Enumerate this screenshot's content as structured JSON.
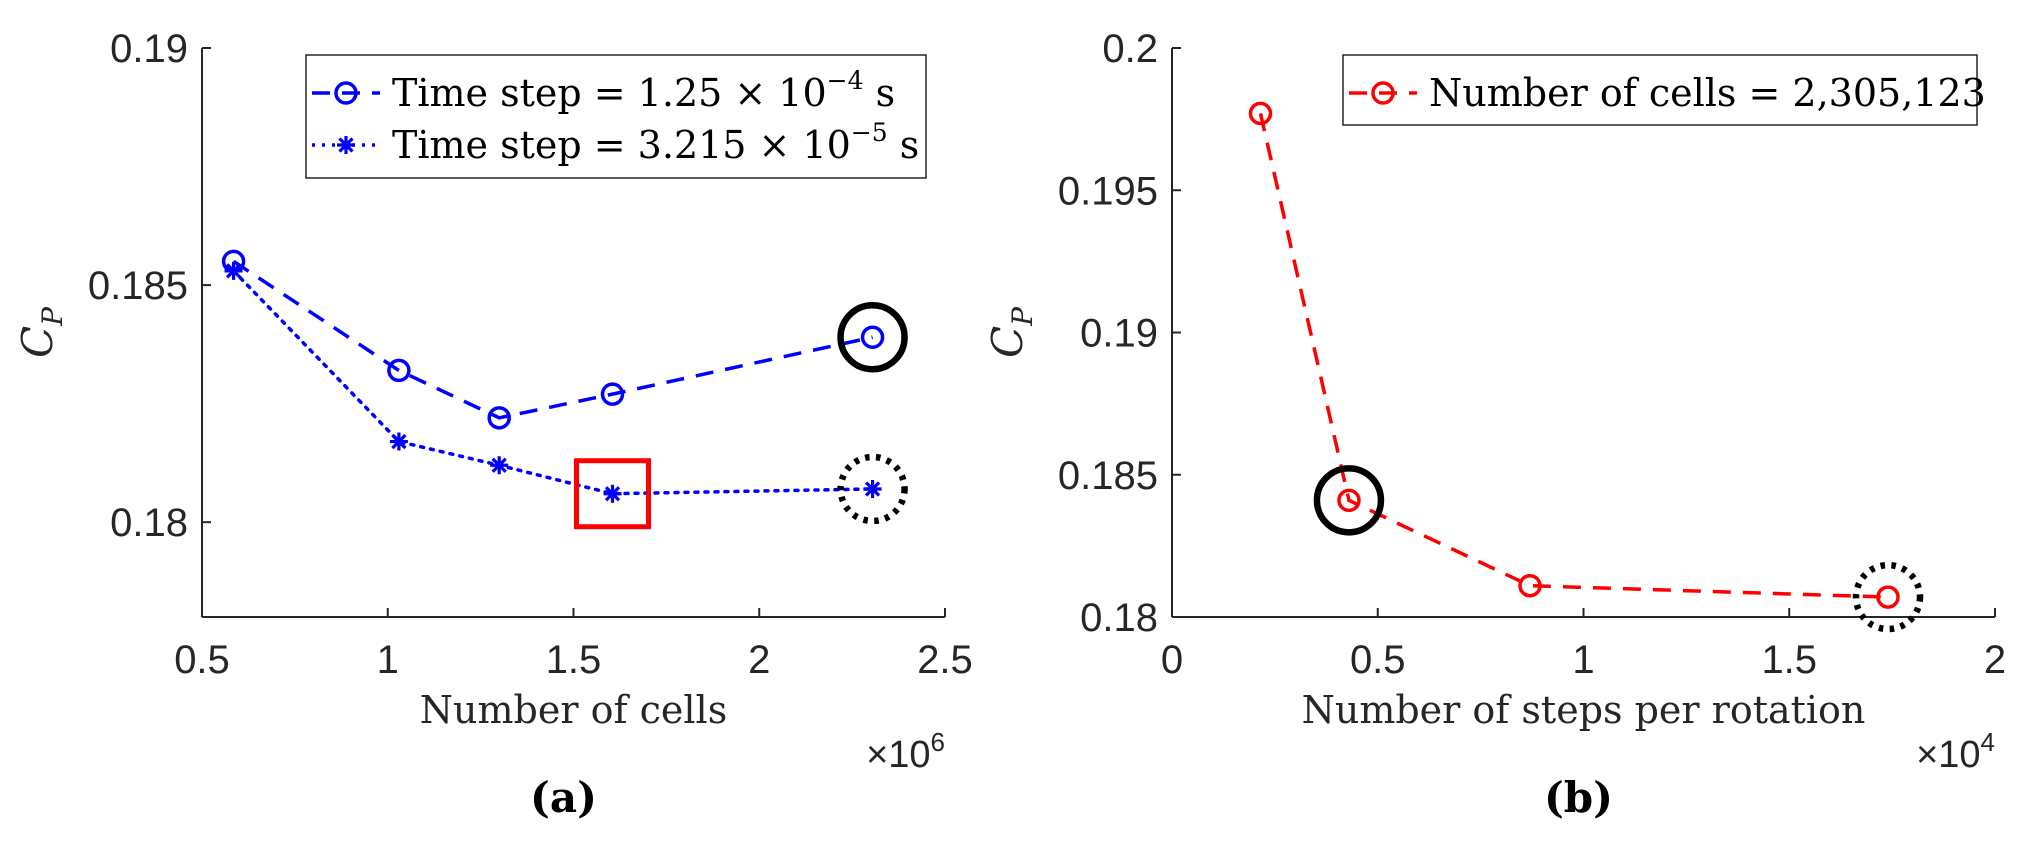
{
  "chart_data": [
    {
      "panel_label": "(a)",
      "type": "line",
      "xlabel": "Number of cells",
      "ylabel": "C",
      "ylabel_sub": "P",
      "x_exponent_base": "×10",
      "x_exponent_power": "6",
      "xlim": [
        0.5,
        2.5
      ],
      "ylim": [
        0.178,
        0.19
      ],
      "xticks": [
        0.5,
        1,
        1.5,
        2,
        2.5
      ],
      "xtick_labels": [
        "0.5",
        "1",
        "1.5",
        "2",
        "2.5"
      ],
      "yticks": [
        0.18,
        0.185,
        0.19
      ],
      "ytick_labels": [
        "0.18",
        "0.185",
        "0.19"
      ],
      "grid": false,
      "legend_position": "top-right",
      "series": [
        {
          "legend_prefix": "Time step = 1.25 × 10",
          "legend_exp": "−4",
          "legend_suffix": " s",
          "color": "#0000ff",
          "line": "dashed",
          "marker": "circle",
          "x": [
            0.585,
            1.03,
            1.3,
            1.605,
            2.305
          ],
          "y": [
            0.1855,
            0.1832,
            0.1822,
            0.1827,
            0.1839
          ]
        },
        {
          "legend_prefix": "Time step = 3.215 × 10",
          "legend_exp": "−5",
          "legend_suffix": " s",
          "color": "#0000ff",
          "line": "dotted",
          "marker": "asterisk",
          "x": [
            0.585,
            1.03,
            1.3,
            1.605,
            2.305
          ],
          "y": [
            0.1853,
            0.1817,
            0.1812,
            0.1806,
            0.1807
          ]
        }
      ],
      "annotations": [
        {
          "shape": "circle",
          "style": "solid",
          "color": "#000000",
          "x": 2.305,
          "y": 0.1839
        },
        {
          "shape": "circle",
          "style": "dotted",
          "color": "#000000",
          "x": 2.305,
          "y": 0.1807
        },
        {
          "shape": "square",
          "style": "solid",
          "color": "#ff0000",
          "x": 1.605,
          "y": 0.1806
        }
      ]
    },
    {
      "panel_label": "(b)",
      "type": "line",
      "xlabel": "Number of steps per rotation",
      "ylabel": "C",
      "ylabel_sub": "P",
      "x_exponent_base": "×10",
      "x_exponent_power": "4",
      "xlim": [
        0,
        2
      ],
      "ylim": [
        0.18,
        0.2
      ],
      "xticks": [
        0,
        0.5,
        1,
        1.5,
        2
      ],
      "xtick_labels": [
        "0",
        "0.5",
        "1",
        "1.5",
        "2"
      ],
      "yticks": [
        0.18,
        0.185,
        0.19,
        0.195,
        0.2
      ],
      "ytick_labels": [
        "0.18",
        "0.185",
        "0.19",
        "0.195",
        "0.2"
      ],
      "grid": false,
      "legend_position": "top-right",
      "series": [
        {
          "legend_prefix": "Number of cells = 2,305,123",
          "legend_exp": "",
          "legend_suffix": "",
          "color": "#ff0000",
          "line": "dashed",
          "marker": "circle",
          "x": [
            0.215,
            0.43,
            0.87,
            1.74
          ],
          "y": [
            0.1977,
            0.1841,
            0.1811,
            0.1807
          ]
        }
      ],
      "annotations": [
        {
          "shape": "circle",
          "style": "solid",
          "color": "#000000",
          "x": 0.43,
          "y": 0.1841
        },
        {
          "shape": "circle",
          "style": "dotted",
          "color": "#000000",
          "x": 1.74,
          "y": 0.1807
        }
      ]
    }
  ]
}
